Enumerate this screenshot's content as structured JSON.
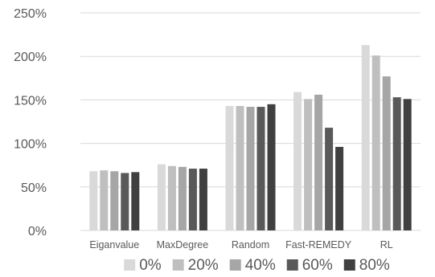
{
  "chart_data": {
    "type": "bar",
    "categories": [
      "Eiganvalue",
      "MaxDegree",
      "Random",
      "Fast-REMEDY",
      "RL"
    ],
    "series": [
      {
        "name": "0%",
        "color": "#d9d9d9",
        "values": [
          68,
          76,
          143,
          159,
          213
        ]
      },
      {
        "name": "20%",
        "color": "#bfbfbf",
        "values": [
          69,
          74,
          143,
          151,
          201
        ]
      },
      {
        "name": "40%",
        "color": "#a6a6a6",
        "values": [
          68,
          73,
          142,
          156,
          177
        ]
      },
      {
        "name": "60%",
        "color": "#595959",
        "values": [
          66,
          71,
          142,
          118,
          153
        ]
      },
      {
        "name": "80%",
        "color": "#404040",
        "values": [
          67,
          71,
          145,
          96,
          151
        ]
      }
    ],
    "y_ticks": [
      "0%",
      "50%",
      "100%",
      "150%",
      "200%",
      "250%"
    ],
    "ylim": [
      0,
      250
    ],
    "grid": true,
    "legend_position": "bottom",
    "title": "",
    "xlabel": "",
    "ylabel": ""
  }
}
